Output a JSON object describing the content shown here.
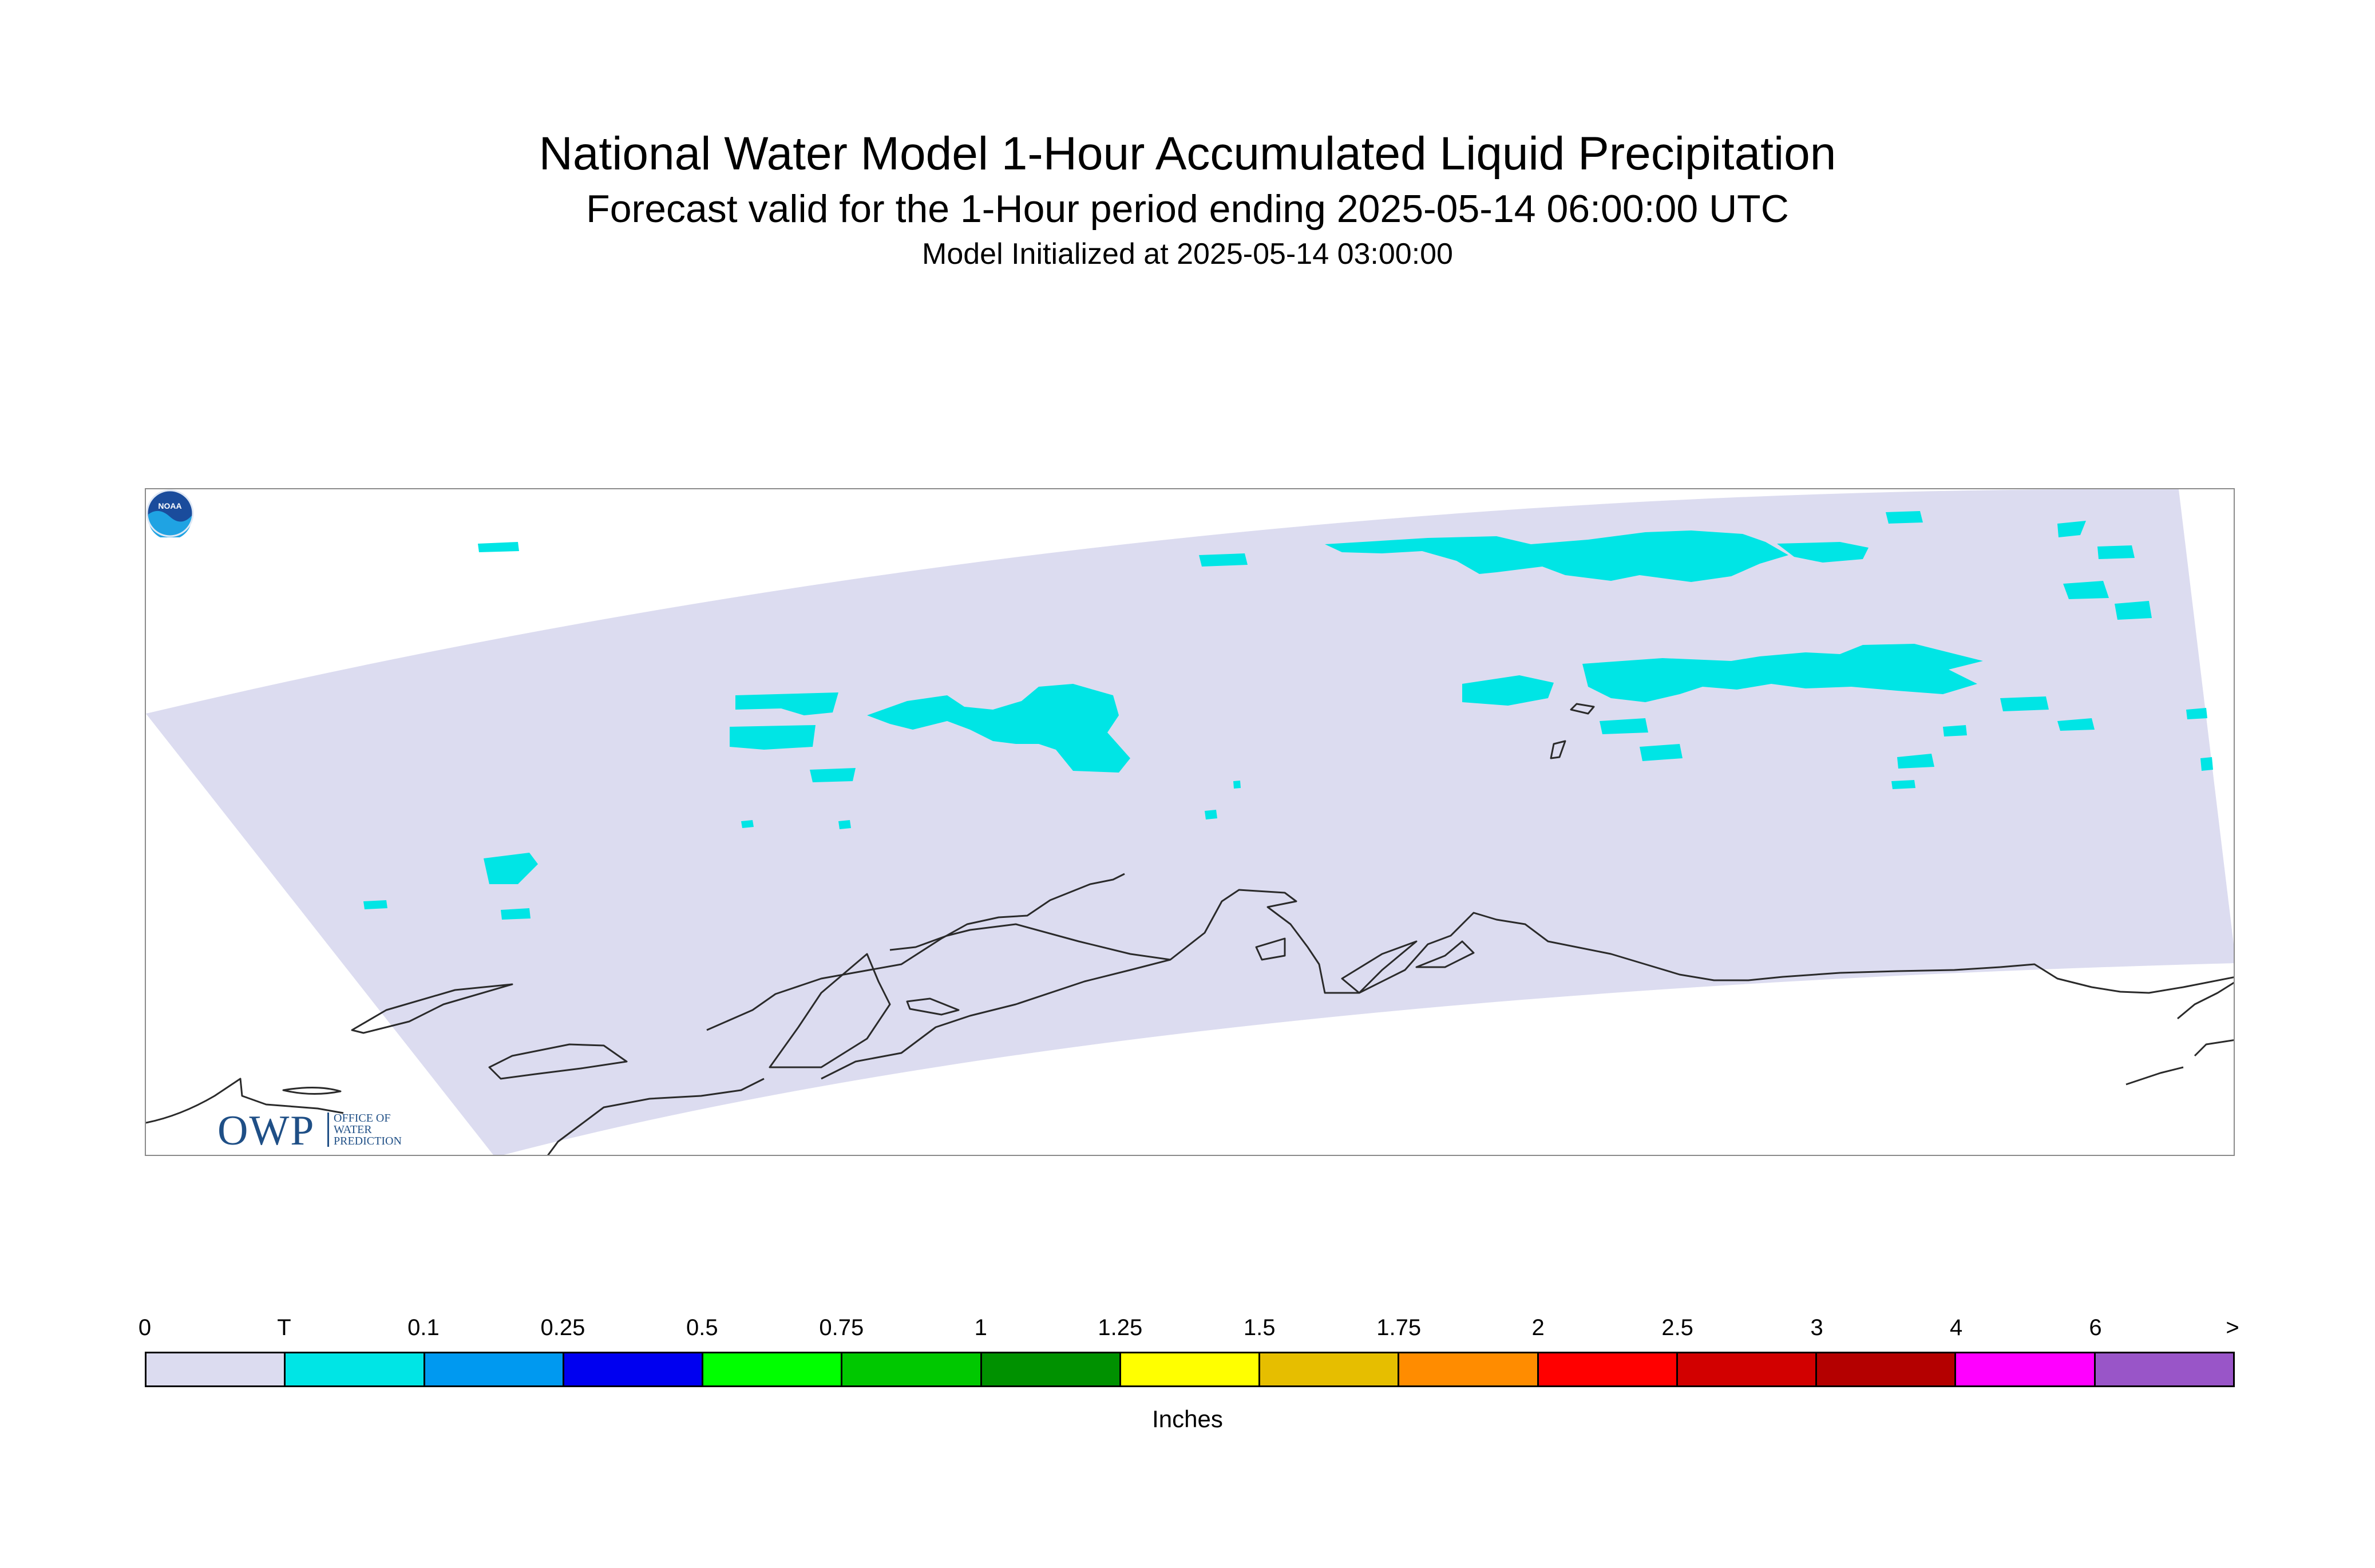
{
  "header": {
    "title": "National Water Model 1-Hour Accumulated Liquid Precipitation",
    "subtitle": "Forecast valid for the 1-Hour period ending 2025-05-14 06:00:00 UTC",
    "init_line": "Model Initialized at 2025-05-14 03:00:00"
  },
  "map": {
    "domain_fill_color": "#dcdcf0",
    "trace_color": "#00e5e5",
    "coastline_color": "#2a2a2a"
  },
  "logos": {
    "owp_letters": "OWP",
    "owp_lines": [
      "OFFICE OF",
      "WATER",
      "PREDICTION"
    ],
    "noaa_text": "NOAA",
    "noaa_icon": "noaa-logo"
  },
  "legend": {
    "units": "Inches",
    "tick_labels": [
      "0",
      "T",
      "0.1",
      "0.25",
      "0.5",
      "0.75",
      "1",
      "1.25",
      "1.5",
      "1.75",
      "2",
      "2.5",
      "3",
      "4",
      "6",
      ">"
    ],
    "colors": [
      "#dcdcf0",
      "#00e5e5",
      "#0099f0",
      "#0000f0",
      "#00ff00",
      "#00c800",
      "#009100",
      "#ffff00",
      "#e6be00",
      "#ff8c00",
      "#ff0000",
      "#d20000",
      "#b40000",
      "#ff00ff",
      "#9955c8"
    ]
  }
}
